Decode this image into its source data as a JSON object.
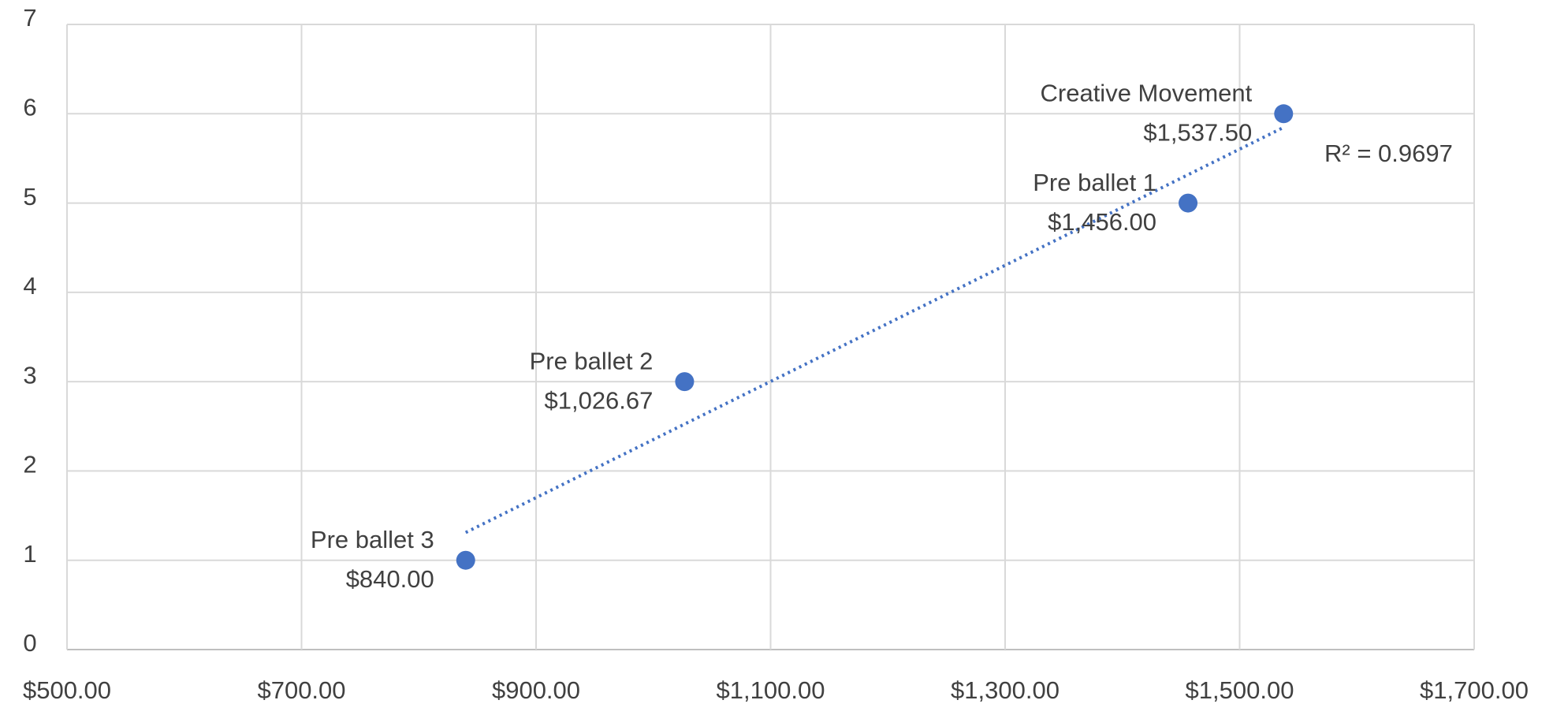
{
  "chart_data": {
    "type": "scatter",
    "names": [
      "Pre ballet 3",
      "Pre ballet 2",
      "Pre ballet 1",
      "Creative Movement"
    ],
    "x": [
      840,
      1026.67,
      1456,
      1537.5
    ],
    "value_labels": [
      "$840.00",
      "$1,026.67",
      "$1,456.00",
      "$1,537.50"
    ],
    "values": [
      1,
      3,
      5,
      6
    ],
    "color": "#4472c4",
    "xlim": [
      500,
      1700
    ],
    "xticks": [
      {
        "value": 500,
        "label": "$500.00"
      },
      {
        "value": 700,
        "label": "$700.00"
      },
      {
        "value": 900,
        "label": "$900.00"
      },
      {
        "value": 1100,
        "label": "$1,100.00"
      },
      {
        "value": 1300,
        "label": "$1,300.00"
      },
      {
        "value": 1500,
        "label": "$1,500.00"
      },
      {
        "value": 1700,
        "label": "$1,700.00"
      }
    ],
    "ylim": [
      0,
      7
    ],
    "yticks": [
      0,
      1,
      2,
      3,
      4,
      5,
      6,
      7
    ],
    "grid": true,
    "trendline": "linear",
    "annotation": "R² = 0.9697"
  }
}
